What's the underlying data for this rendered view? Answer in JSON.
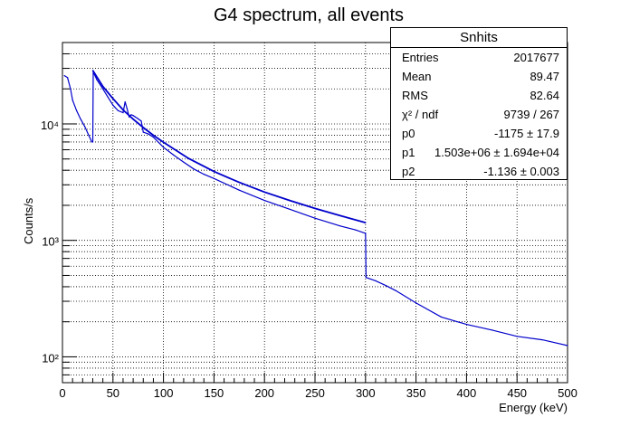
{
  "chart_data": {
    "type": "line",
    "title": "G4 spectrum, all events",
    "xlabel": "Energy (keV)",
    "ylabel": "Counts/s",
    "xlim": [
      0,
      500
    ],
    "ylim": [
      60,
      50000
    ],
    "yscale": "log",
    "grid": true,
    "x_ticks": [
      0,
      50,
      100,
      150,
      200,
      250,
      300,
      350,
      400,
      450,
      500
    ],
    "x_tick_labels": [
      "0",
      "50",
      "100",
      "150",
      "200",
      "250",
      "300",
      "350",
      "400",
      "450",
      "500"
    ],
    "y_ticks": [
      100,
      1000,
      10000
    ],
    "y_tick_labels": [
      "10²",
      "10³",
      "10⁴"
    ],
    "series": [
      {
        "name": "histogram",
        "x": [
          2,
          5,
          8,
          10,
          14,
          18,
          22,
          26,
          29,
          30,
          30.5,
          34,
          40,
          45,
          50,
          55,
          60,
          62,
          64,
          66,
          68,
          70,
          72,
          74,
          76,
          78,
          80,
          85,
          90,
          100,
          110,
          120,
          130,
          140,
          150,
          175,
          200,
          225,
          250,
          275,
          290,
          300,
          300.5,
          310,
          320,
          330,
          350,
          375,
          400,
          425,
          450,
          475,
          500
        ],
        "y": [
          26000,
          25000,
          20000,
          16000,
          13000,
          11000,
          9500,
          8000,
          7000,
          7000,
          28000,
          24000,
          20000,
          17000,
          14500,
          13000,
          12500,
          15500,
          13500,
          11500,
          12000,
          11800,
          11500,
          11200,
          10900,
          10600,
          8500,
          8200,
          7700,
          6300,
          5400,
          4700,
          4100,
          3700,
          3400,
          2700,
          2200,
          1850,
          1550,
          1330,
          1230,
          1150,
          480,
          450,
          410,
          370,
          290,
          220,
          190,
          170,
          150,
          140,
          125
        ]
      },
      {
        "name": "fit",
        "x": [
          30,
          40,
          50,
          60,
          70,
          80,
          90,
          100,
          125,
          150,
          175,
          200,
          225,
          250,
          275,
          300
        ],
        "y": [
          28800,
          21000,
          16500,
          13200,
          11000,
          9300,
          8000,
          6950,
          5050,
          3900,
          3150,
          2600,
          2200,
          1880,
          1630,
          1420
        ]
      }
    ]
  },
  "stats_box": {
    "title": "Snhits",
    "rows": [
      {
        "label": "Entries",
        "value": "2017677"
      },
      {
        "label": "Mean",
        "value": "89.47"
      },
      {
        "label": "RMS",
        "value": "82.64"
      },
      {
        "label": "χ² / ndf",
        "value": "9739 / 267"
      },
      {
        "label": "p0",
        "value": "-1175 ± 17.9"
      },
      {
        "label": "p1",
        "value": "1.503e+06 ± 1.694e+04"
      },
      {
        "label": "p2",
        "value": "-1.136 ± 0.003"
      }
    ]
  },
  "colors": {
    "line": "#0000cc",
    "grid": "#000000",
    "axis": "#000000"
  }
}
